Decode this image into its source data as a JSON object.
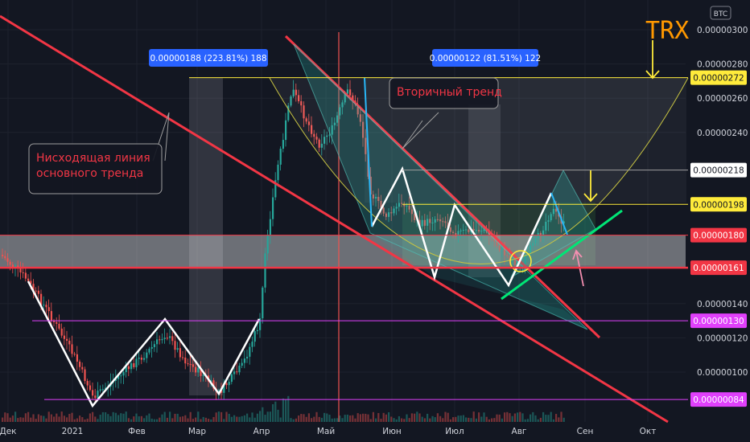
{
  "chart_data": {
    "type": "candlestick",
    "title": "TRX",
    "currency": "BTC",
    "price_axis": {
      "ticks": [
        "0.00000300",
        "0.00000280",
        "0.00000260",
        "0.00000240",
        "0.00000140",
        "0.00000120",
        "0.00000100"
      ],
      "range": [
        6.6e-07,
        3.06e-06
      ]
    },
    "price_tags": [
      {
        "label": "0.00000272",
        "value": 2.72e-06,
        "bg": "#ffeb3b",
        "fg": "#131722"
      },
      {
        "label": "0.00000218",
        "value": 2.18e-06,
        "bg": "#ffffff",
        "fg": "#131722"
      },
      {
        "label": "0.00000198",
        "value": 1.98e-06,
        "bg": "#ffeb3b",
        "fg": "#131722"
      },
      {
        "label": "0.00000180",
        "value": 1.8e-06,
        "bg": "#f23645",
        "fg": "#ffffff"
      },
      {
        "label": "0.00000161",
        "value": 1.61e-06,
        "bg": "#f23645",
        "fg": "#ffffff"
      },
      {
        "label": "0.00000130",
        "value": 1.3e-06,
        "bg": "#e040fb",
        "fg": "#ffffff"
      },
      {
        "label": "0.00000084",
        "value": 8.4e-07,
        "bg": "#e040fb",
        "fg": "#ffffff"
      }
    ],
    "time_axis": [
      "Дек",
      "2021",
      "Фев",
      "Мар",
      "Апр",
      "Май",
      "Июн",
      "Июл",
      "Авг",
      "Сен",
      "Окт"
    ],
    "measurements": [
      {
        "label": "0.00000188 (223.81%) 188"
      },
      {
        "label": "0.00000122 (81.51%) 122"
      }
    ],
    "annotations": [
      {
        "lines": [
          "Нисходящая линия",
          "основного тренда"
        ]
      },
      {
        "lines": [
          "Вторичный тренд"
        ]
      }
    ],
    "colors": {
      "background": "#131722",
      "up": "#26a69a",
      "down": "#ef5350",
      "trendline": "#f23645",
      "measure": "#2962ff",
      "ticker": "#ff9800",
      "support": "#00e676"
    }
  }
}
